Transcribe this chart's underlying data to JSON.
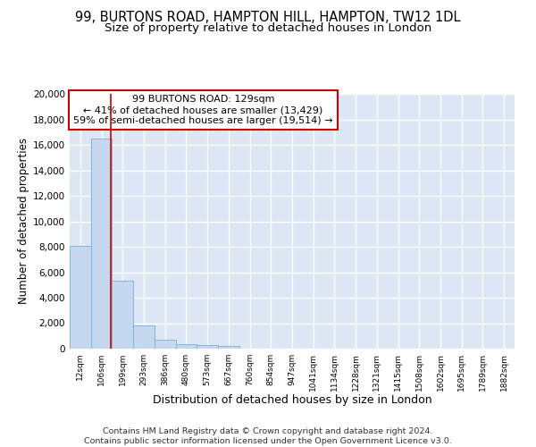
{
  "title1": "99, BURTONS ROAD, HAMPTON HILL, HAMPTON, TW12 1DL",
  "title2": "Size of property relative to detached houses in London",
  "xlabel": "Distribution of detached houses by size in London",
  "ylabel": "Number of detached properties",
  "categories": [
    "12sqm",
    "106sqm",
    "199sqm",
    "293sqm",
    "386sqm",
    "480sqm",
    "573sqm",
    "667sqm",
    "760sqm",
    "854sqm",
    "947sqm",
    "1041sqm",
    "1134sqm",
    "1228sqm",
    "1321sqm",
    "1415sqm",
    "1508sqm",
    "1602sqm",
    "1695sqm",
    "1789sqm",
    "1882sqm"
  ],
  "values": [
    8100,
    16500,
    5300,
    1850,
    680,
    380,
    280,
    200,
    0,
    0,
    0,
    0,
    0,
    0,
    0,
    0,
    0,
    0,
    0,
    0,
    0
  ],
  "bar_color": "#c5d8ef",
  "bar_edge_color": "#7bafd4",
  "vline_x": 1.45,
  "vline_color": "#cc0000",
  "annotation_text": "99 BURTONS ROAD: 129sqm\n← 41% of detached houses are smaller (13,429)\n59% of semi-detached houses are larger (19,514) →",
  "annotation_box_color": "#ffffff",
  "annotation_box_edge": "#cc0000",
  "ylim": [
    0,
    20000
  ],
  "yticks": [
    0,
    2000,
    4000,
    6000,
    8000,
    10000,
    12000,
    14000,
    16000,
    18000,
    20000
  ],
  "background_color": "#dce6f5",
  "footer_text": "Contains HM Land Registry data © Crown copyright and database right 2024.\nContains public sector information licensed under the Open Government Licence v3.0.",
  "title1_fontsize": 10.5,
  "title2_fontsize": 9.5,
  "xlabel_fontsize": 9,
  "ylabel_fontsize": 8.5,
  "footer_fontsize": 6.8
}
